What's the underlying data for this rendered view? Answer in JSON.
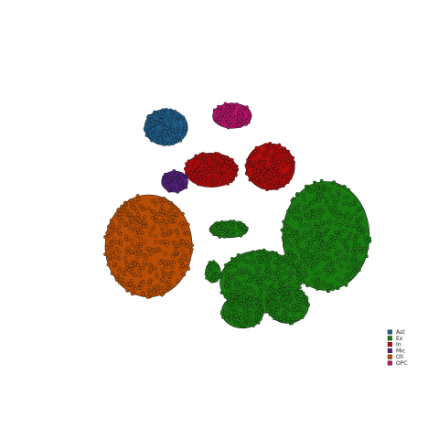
{
  "chart_data": {
    "type": "scatter",
    "title": "",
    "xlabel": "",
    "ylabel": "",
    "axes_visible": false,
    "grid": false,
    "legend_position": "bottom-right",
    "xlim": [
      0,
      100
    ],
    "ylim": [
      0,
      100
    ],
    "clusters": [
      {
        "label": "Ast",
        "color": "#1f5f8b",
        "lobes": [
          {
            "cx": 32,
            "cy": 78,
            "rx": 6.2,
            "ry": 5.5,
            "n": 160
          }
        ]
      },
      {
        "label": "Ex",
        "color": "#1a7a12",
        "lobes": [
          {
            "cx": 78,
            "cy": 45,
            "rx": 12.5,
            "ry": 16.5,
            "n": 430
          },
          {
            "cx": 59,
            "cy": 31,
            "rx": 11.5,
            "ry": 9.5,
            "n": 300
          },
          {
            "cx": 54,
            "cy": 22,
            "rx": 6.0,
            "ry": 5.0,
            "n": 110
          },
          {
            "cx": 67,
            "cy": 24,
            "rx": 6.0,
            "ry": 5.5,
            "n": 110
          },
          {
            "cx": 50,
            "cy": 47,
            "rx": 5.5,
            "ry": 2.5,
            "n": 60
          },
          {
            "cx": 45.5,
            "cy": 34,
            "rx": 2.2,
            "ry": 3.2,
            "n": 25
          }
        ]
      },
      {
        "label": "In",
        "color": "#b30c0c",
        "lobes": [
          {
            "cx": 45,
            "cy": 65,
            "rx": 7.5,
            "ry": 5.2,
            "n": 190
          },
          {
            "cx": 62,
            "cy": 66,
            "rx": 7.0,
            "ry": 7.0,
            "n": 210
          }
        ]
      },
      {
        "label": "Mic",
        "color": "#56207f",
        "lobes": [
          {
            "cx": 34.5,
            "cy": 61.5,
            "rx": 3.8,
            "ry": 3.2,
            "n": 60
          }
        ]
      },
      {
        "label": "Oli",
        "color": "#b84d06",
        "lobes": [
          {
            "cx": 27,
            "cy": 42,
            "rx": 12.5,
            "ry": 15.5,
            "n": 400
          }
        ]
      },
      {
        "label": "OPC",
        "color": "#b8126a",
        "lobes": [
          {
            "cx": 51,
            "cy": 81.5,
            "rx": 5.6,
            "ry": 3.8,
            "n": 90
          }
        ]
      }
    ]
  }
}
